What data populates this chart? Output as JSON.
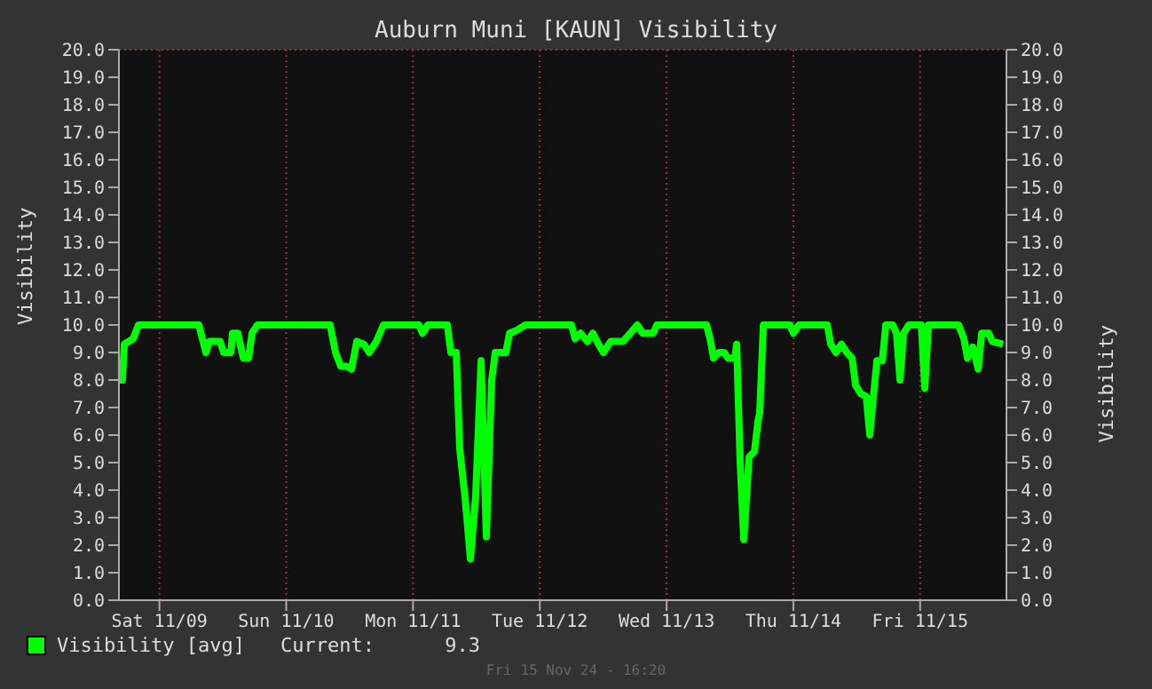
{
  "chart_data": {
    "type": "line",
    "title": "Auburn Muni [KAUN] Visibility",
    "ylabel": "Visibility",
    "y2label": "Visibility",
    "x": [
      "--11-08T16:20",
      "--11-08T16:59",
      "--11-08T17:21",
      "--11-08T19:02",
      "--11-08T20:02",
      "--11-09T07:28",
      "--11-09T08:08",
      "--11-09T08:48",
      "--11-09T09:29",
      "--11-09T11:29",
      "--11-09T12:10",
      "--11-09T13:31",
      "--11-09T13:50",
      "--11-09T14:51",
      "--11-09T15:52",
      "--11-09T16:52",
      "--11-09T17:32",
      "--11-09T18:33",
      "--11-10T08:19",
      "--11-10T09:20",
      "--11-10T10:20",
      "--11-10T11:21",
      "--11-10T12:22",
      "--11-10T13:22",
      "--11-10T14:43",
      "--11-10T15:43",
      "--11-10T17:04",
      "--11-10T18:24",
      "--11-11T01:08",
      "--11-11T01:48",
      "--11-11T02:48",
      "--11-11T06:30",
      "--11-11T07:10",
      "--11-11T08:11",
      "--11-11T08:51",
      "--11-11T09:52",
      "--11-11T10:52",
      "--11-11T11:52",
      "--11-11T12:53",
      "--11-11T13:53",
      "--11-11T14:54",
      "--11-11T15:34",
      "--11-11T17:35",
      "--11-11T18:16",
      "--11-11T19:36",
      "--11-11T21:17",
      "--11-12T06:01",
      "--11-12T06:41",
      "--11-12T07:42",
      "--11-12T09:02",
      "--11-12T10:03",
      "--11-12T11:24",
      "--11-12T12:04",
      "--11-12T13:25",
      "--11-12T15:46",
      "--11-12T17:07",
      "--11-12T18:27",
      "--11-12T19:28",
      "--11-12T21:29",
      "--11-12T22:09",
      "--11-13T07:34",
      "--11-13T08:14",
      "--11-13T08:54",
      "--11-13T09:55",
      "--11-13T10:55",
      "--11-13T11:35",
      "--11-13T12:56",
      "--11-13T13:16",
      "--11-13T13:56",
      "--11-13T14:37",
      "--11-13T15:37",
      "--11-13T16:38",
      "--11-13T17:18",
      "--11-13T17:38",
      "--11-13T18:19",
      "--11-13T23:21",
      "--11-14T00:01",
      "--11-14T01:02",
      "--11-14T06:25",
      "--11-14T07:05",
      "--11-14T08:05",
      "--11-14T09:06",
      "--11-14T10:07",
      "--11-14T11:07",
      "--11-14T11:47",
      "--11-14T12:47",
      "--11-14T13:48",
      "--11-14T14:28",
      "--11-14T15:09",
      "--11-14T15:49",
      "--11-14T16:50",
      "--11-14T17:30",
      "--11-14T18:50",
      "--11-14T19:31",
      "--11-14T20:11",
      "--11-14T20:52",
      "--11-14T21:52",
      "--11-15T00:13",
      "--11-15T00:53",
      "--11-15T01:34",
      "--11-15T07:17",
      "--11-15T08:17",
      "--11-15T08:58",
      "--11-15T09:58",
      "--11-15T10:59",
      "--11-15T11:39",
      "--11-15T12:59",
      "--11-15T13:40",
      "--11-15T15:41"
    ],
    "series": [
      {
        "name": "Visibility [avg]",
        "color": "#00ff00",
        "values": [
          8.0,
          8.0,
          9.3,
          9.5,
          10.0,
          10.0,
          9.5,
          9.0,
          9.4,
          9.4,
          9.0,
          9.0,
          9.7,
          9.7,
          8.8,
          8.8,
          9.7,
          10.0,
          10.0,
          9.0,
          8.5,
          8.5,
          8.4,
          9.4,
          9.3,
          9.0,
          9.4,
          10.0,
          10.0,
          9.7,
          10.0,
          10.0,
          9.0,
          9.0,
          5.5,
          3.7,
          1.5,
          3.8,
          8.7,
          2.3,
          8.0,
          9.0,
          9.0,
          9.7,
          9.8,
          10.0,
          10.0,
          9.5,
          9.7,
          9.4,
          9.7,
          9.2,
          9.0,
          9.4,
          9.4,
          9.7,
          10.0,
          9.7,
          9.7,
          10.0,
          10.0,
          9.5,
          8.8,
          9.0,
          9.0,
          8.8,
          8.8,
          9.3,
          5.0,
          2.2,
          5.2,
          5.4,
          6.5,
          6.8,
          10.0,
          10.0,
          9.7,
          10.0,
          10.0,
          9.3,
          9.0,
          9.3,
          9.0,
          8.8,
          7.8,
          7.5,
          7.4,
          6.0,
          7.4,
          8.7,
          8.7,
          10.0,
          10.0,
          9.7,
          8.0,
          9.7,
          10.0,
          10.0,
          7.7,
          10.0,
          10.0,
          9.5,
          8.8,
          9.2,
          8.4,
          9.7,
          9.7,
          9.4,
          9.3
        ]
      }
    ],
    "xlim": [
      "--11-08T16:20",
      "--11-15T16:20"
    ],
    "xticks": [
      {
        "value": "--11-09T00:00",
        "label": "Sat 11/09"
      },
      {
        "value": "--11-10T00:00",
        "label": "Sun 11/10"
      },
      {
        "value": "--11-11T00:00",
        "label": "Mon 11/11"
      },
      {
        "value": "--11-12T00:00",
        "label": "Tue 11/12"
      },
      {
        "value": "--11-13T00:00",
        "label": "Wed 11/13"
      },
      {
        "value": "--11-14T00:00",
        "label": "Thu 11/14"
      },
      {
        "value": "--11-15T00:00",
        "label": "Fri 11/15"
      }
    ],
    "ylim": [
      0,
      20
    ],
    "yticks": [
      {
        "value": 0,
        "label": "0.0"
      },
      {
        "value": 1,
        "label": "1.0"
      },
      {
        "value": 2,
        "label": "2.0"
      },
      {
        "value": 3,
        "label": "3.0"
      },
      {
        "value": 4,
        "label": "4.0"
      },
      {
        "value": 5,
        "label": "5.0"
      },
      {
        "value": 6,
        "label": "6.0"
      },
      {
        "value": 7,
        "label": "7.0"
      },
      {
        "value": 8,
        "label": "8.0"
      },
      {
        "value": 9,
        "label": "9.0"
      },
      {
        "value": 10,
        "label": "10.0"
      },
      {
        "value": 11,
        "label": "11.0"
      },
      {
        "value": 12,
        "label": "12.0"
      },
      {
        "value": 13,
        "label": "13.0"
      },
      {
        "value": 14,
        "label": "14.0"
      },
      {
        "value": 15,
        "label": "15.0"
      },
      {
        "value": 16,
        "label": "16.0"
      },
      {
        "value": 17,
        "label": "17.0"
      },
      {
        "value": 18,
        "label": "18.0"
      },
      {
        "value": 19,
        "label": "19.0"
      },
      {
        "value": 20,
        "label": "20.0"
      }
    ],
    "y2lim": [
      0,
      20
    ],
    "y2ticks": [
      {
        "value": 0,
        "label": "0.0"
      },
      {
        "value": 1,
        "label": "1.0"
      },
      {
        "value": 2,
        "label": "2.0"
      },
      {
        "value": 3,
        "label": "3.0"
      },
      {
        "value": 4,
        "label": "4.0"
      },
      {
        "value": 5,
        "label": "5.0"
      },
      {
        "value": 6,
        "label": "6.0"
      },
      {
        "value": 7,
        "label": "7.0"
      },
      {
        "value": 8,
        "label": "8.0"
      },
      {
        "value": 9,
        "label": "9.0"
      },
      {
        "value": 10,
        "label": "10.0"
      },
      {
        "value": 11,
        "label": "11.0"
      },
      {
        "value": 12,
        "label": "12.0"
      },
      {
        "value": 13,
        "label": "13.0"
      },
      {
        "value": 14,
        "label": "14.0"
      },
      {
        "value": 15,
        "label": "15.0"
      },
      {
        "value": 16,
        "label": "16.0"
      },
      {
        "value": 17,
        "label": "17.0"
      },
      {
        "value": 18,
        "label": "18.0"
      },
      {
        "value": 19,
        "label": "19.0"
      },
      {
        "value": 20,
        "label": "20.0"
      }
    ],
    "grid": true,
    "legend": "bottom left",
    "marker": "none",
    "line_style": "solid",
    "annotations": [
      "Current:      9.3",
      "Fri 15 Nov 24 - 16:20"
    ]
  }
}
